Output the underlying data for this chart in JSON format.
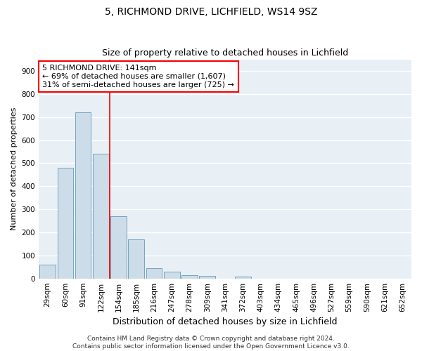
{
  "title1": "5, RICHMOND DRIVE, LICHFIELD, WS14 9SZ",
  "title2": "Size of property relative to detached houses in Lichfield",
  "xlabel": "Distribution of detached houses by size in Lichfield",
  "ylabel": "Number of detached properties",
  "categories": [
    "29sqm",
    "60sqm",
    "91sqm",
    "122sqm",
    "154sqm",
    "185sqm",
    "216sqm",
    "247sqm",
    "278sqm",
    "309sqm",
    "341sqm",
    "372sqm",
    "403sqm",
    "434sqm",
    "465sqm",
    "496sqm",
    "527sqm",
    "559sqm",
    "590sqm",
    "621sqm",
    "652sqm"
  ],
  "values": [
    60,
    480,
    720,
    540,
    270,
    170,
    45,
    30,
    15,
    12,
    0,
    8,
    0,
    0,
    0,
    0,
    0,
    0,
    0,
    0,
    0
  ],
  "bar_color": "#ccdce8",
  "bar_edge_color": "#6699bb",
  "annotation_text": "5 RICHMOND DRIVE: 141sqm\n← 69% of detached houses are smaller (1,607)\n31% of semi-detached houses are larger (725) →",
  "annotation_box_color": "white",
  "annotation_box_edge_color": "red",
  "vline_color": "red",
  "vline_x": 3.5,
  "ylim": [
    0,
    950
  ],
  "yticks": [
    0,
    100,
    200,
    300,
    400,
    500,
    600,
    700,
    800,
    900
  ],
  "background_color": "#e8eff5",
  "grid_color": "white",
  "footer": "Contains HM Land Registry data © Crown copyright and database right 2024.\nContains public sector information licensed under the Open Government Licence v3.0.",
  "title_fontsize": 10,
  "subtitle_fontsize": 9,
  "ylabel_fontsize": 8,
  "xlabel_fontsize": 9,
  "tick_fontsize": 7.5,
  "annotation_fontsize": 8,
  "footer_fontsize": 6.5
}
